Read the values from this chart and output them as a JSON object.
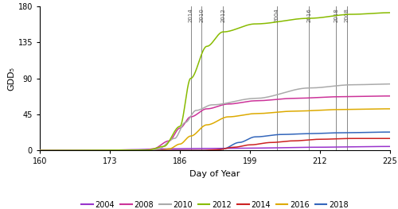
{
  "xlim": [
    160,
    225
  ],
  "ylim": [
    0,
    180
  ],
  "xticks": [
    160,
    173,
    186,
    199,
    212,
    225
  ],
  "yticks": [
    0,
    45,
    90,
    135,
    180
  ],
  "xlabel": "Day of Year",
  "ylabel": "GDD₅",
  "colors": {
    "2004": "#9933cc",
    "2008": "#cc3399",
    "2010": "#aaaaaa",
    "2012": "#88bb00",
    "2014": "#cc2222",
    "2016": "#ddaa00",
    "2018": "#3366bb"
  },
  "satellite_lines": {
    "2014": 188,
    "2010": 190,
    "2012": 194,
    "2004": 204,
    "2016": 210,
    "2018": 215,
    "2008": 217
  },
  "legend_order": [
    "2004",
    "2008",
    "2010",
    "2012",
    "2014",
    "2016",
    "2018"
  ],
  "background_color": "#ffffff"
}
